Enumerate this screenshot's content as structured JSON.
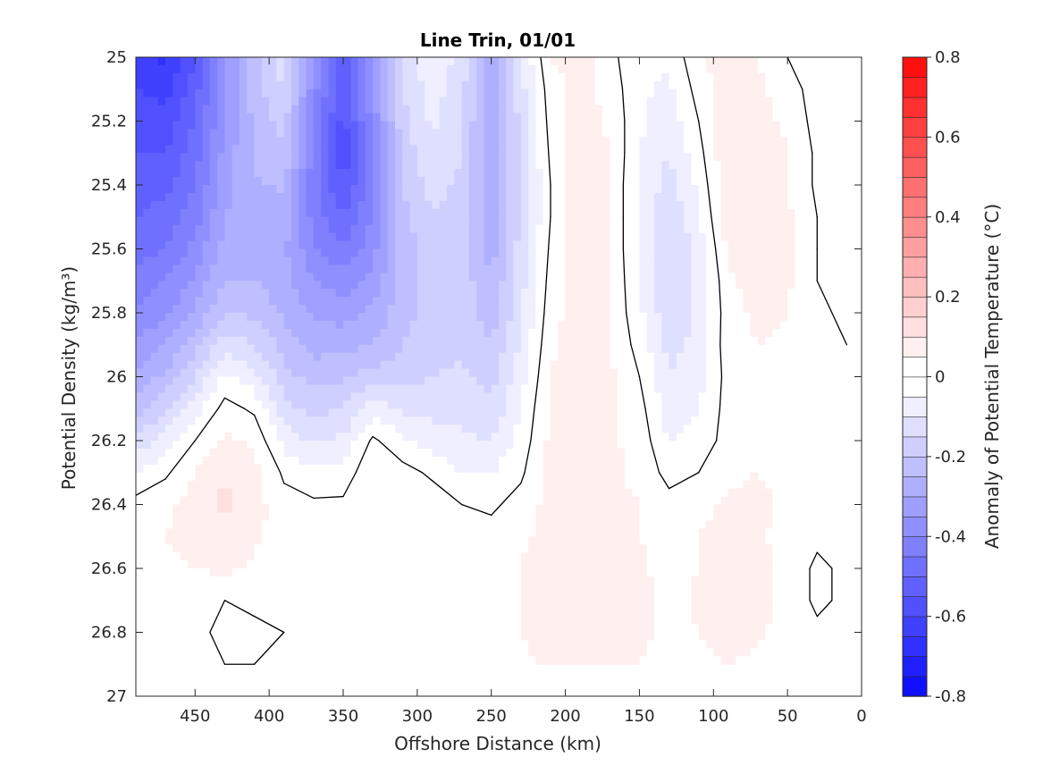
{
  "chart_data": {
    "type": "heatmap",
    "subtype": "filled-contour",
    "title": "Line Trin, 01/01",
    "xlabel": "Offshore Distance (km)",
    "ylabel": "Potential Density (kg/m³)",
    "xlim": [
      490,
      0
    ],
    "ylim": [
      25,
      27
    ],
    "x_direction": "reversed",
    "y_direction": "reversed",
    "x_ticks": [
      450,
      400,
      350,
      300,
      250,
      200,
      150,
      100,
      50,
      0
    ],
    "y_ticks": [
      25,
      25.2,
      25.4,
      25.6,
      25.8,
      26,
      26.2,
      26.4,
      26.6,
      26.8,
      27
    ],
    "y_tick_labels": [
      "25",
      "25.2",
      "25.4",
      "25.6",
      "25.8",
      "26",
      "26.2",
      "26.4",
      "26.6",
      "26.8",
      "27"
    ],
    "grid": false,
    "data_x_range": [
      490,
      10
    ],
    "data_y_range": [
      25,
      26.9
    ],
    "colorbar": {
      "label": "Anomaly of Potential Temperature (°C)",
      "range": [
        -0.8,
        0.8
      ],
      "step": 0.05,
      "ticks": [
        -0.8,
        -0.6,
        -0.4,
        -0.2,
        0,
        0.2,
        0.4,
        0.6,
        0.8
      ],
      "tick_labels": [
        "-0.8",
        "-0.6",
        "-0.4",
        "-0.2",
        "0",
        "0.2",
        "0.4",
        "0.6",
        "0.8"
      ],
      "colormap": "blue-white-red",
      "cold_color": "#0000ff",
      "warm_color": "#ff0000",
      "neutral_color": "#ffffff"
    },
    "zero_contour_color": "#000000",
    "grid_x": [
      490,
      470,
      450,
      430,
      410,
      390,
      370,
      350,
      330,
      310,
      290,
      270,
      250,
      230,
      210,
      190,
      170,
      150,
      130,
      110,
      90,
      70,
      50,
      30,
      10
    ],
    "grid_y": [
      25.0,
      25.1,
      25.2,
      25.3,
      25.4,
      25.5,
      25.6,
      25.7,
      25.8,
      25.9,
      26.0,
      26.1,
      26.2,
      26.3,
      26.4,
      26.5,
      26.6,
      26.7,
      26.8,
      26.9
    ],
    "values": [
      [
        -0.62,
        -0.66,
        -0.55,
        -0.35,
        -0.22,
        -0.12,
        -0.35,
        -0.55,
        -0.35,
        -0.12,
        -0.06,
        -0.12,
        -0.3,
        -0.1,
        0.05,
        0.07,
        0.02,
        -0.05,
        -0.04,
        0.04,
        0.08,
        0.05,
        0.0,
        -0.03,
        -0.04
      ],
      [
        -0.6,
        -0.62,
        -0.52,
        -0.35,
        -0.22,
        -0.15,
        -0.38,
        -0.55,
        -0.35,
        -0.15,
        -0.08,
        -0.13,
        -0.3,
        -0.12,
        0.03,
        0.07,
        0.03,
        -0.04,
        -0.06,
        0.02,
        0.09,
        0.06,
        0.02,
        -0.02,
        -0.05
      ],
      [
        -0.57,
        -0.58,
        -0.5,
        -0.35,
        -0.24,
        -0.18,
        -0.4,
        -0.57,
        -0.38,
        -0.17,
        -0.09,
        -0.14,
        -0.3,
        -0.13,
        0.02,
        0.08,
        0.04,
        -0.04,
        -0.08,
        0.0,
        0.1,
        0.07,
        0.04,
        -0.02,
        -0.05
      ],
      [
        -0.55,
        -0.55,
        -0.47,
        -0.33,
        -0.24,
        -0.21,
        -0.42,
        -0.58,
        -0.4,
        -0.18,
        -0.11,
        -0.15,
        -0.3,
        -0.14,
        0.01,
        0.09,
        0.05,
        -0.05,
        -0.1,
        -0.02,
        0.1,
        0.08,
        0.05,
        -0.01,
        -0.05
      ],
      [
        -0.52,
        -0.52,
        -0.45,
        -0.32,
        -0.26,
        -0.24,
        -0.43,
        -0.56,
        -0.41,
        -0.2,
        -0.13,
        -0.16,
        -0.29,
        -0.14,
        0.0,
        0.09,
        0.05,
        -0.06,
        -0.12,
        -0.04,
        0.09,
        0.08,
        0.05,
        -0.01,
        -0.05
      ],
      [
        -0.5,
        -0.48,
        -0.42,
        -0.3,
        -0.27,
        -0.27,
        -0.42,
        -0.5,
        -0.39,
        -0.22,
        -0.15,
        -0.17,
        -0.28,
        -0.14,
        0.0,
        0.09,
        0.05,
        -0.06,
        -0.14,
        -0.06,
        0.08,
        0.08,
        0.06,
        0.0,
        -0.04
      ],
      [
        -0.47,
        -0.45,
        -0.38,
        -0.28,
        -0.27,
        -0.29,
        -0.39,
        -0.44,
        -0.37,
        -0.23,
        -0.17,
        -0.17,
        -0.27,
        -0.13,
        0.01,
        0.08,
        0.05,
        -0.06,
        -0.15,
        -0.08,
        0.06,
        0.08,
        0.06,
        0.0,
        -0.03
      ],
      [
        -0.43,
        -0.4,
        -0.34,
        -0.25,
        -0.25,
        -0.28,
        -0.35,
        -0.38,
        -0.33,
        -0.23,
        -0.18,
        -0.17,
        -0.25,
        -0.12,
        0.02,
        0.08,
        0.05,
        -0.05,
        -0.15,
        -0.09,
        0.04,
        0.07,
        0.06,
        0.0,
        -0.02
      ],
      [
        -0.39,
        -0.36,
        -0.29,
        -0.2,
        -0.21,
        -0.26,
        -0.31,
        -0.32,
        -0.29,
        -0.22,
        -0.18,
        -0.17,
        -0.23,
        -0.11,
        0.03,
        0.08,
        0.05,
        -0.04,
        -0.14,
        -0.09,
        0.03,
        0.06,
        0.05,
        0.01,
        -0.01
      ],
      [
        -0.34,
        -0.3,
        -0.22,
        -0.12,
        -0.15,
        -0.22,
        -0.27,
        -0.27,
        -0.25,
        -0.2,
        -0.17,
        -0.16,
        -0.2,
        -0.09,
        0.04,
        0.08,
        0.05,
        -0.02,
        -0.12,
        -0.08,
        0.03,
        0.05,
        0.04,
        0.02,
        0.0
      ],
      [
        -0.29,
        -0.24,
        -0.15,
        -0.04,
        -0.08,
        -0.18,
        -0.22,
        -0.21,
        -0.18,
        -0.17,
        -0.15,
        -0.14,
        -0.17,
        -0.07,
        0.05,
        0.09,
        0.06,
        0.0,
        -0.1,
        -0.07,
        0.02,
        0.04,
        0.03,
        0.02,
        0.01
      ],
      [
        -0.22,
        -0.16,
        -0.07,
        0.02,
        -0.01,
        -0.13,
        -0.17,
        -0.15,
        -0.07,
        -0.11,
        -0.12,
        -0.12,
        -0.14,
        -0.05,
        0.06,
        0.09,
        0.06,
        0.02,
        -0.08,
        -0.05,
        0.02,
        0.03,
        0.03,
        0.02,
        0.02
      ],
      [
        -0.14,
        -0.08,
        0.0,
        0.06,
        0.04,
        -0.07,
        -0.11,
        -0.09,
        0.01,
        -0.04,
        -0.07,
        -0.09,
        -0.1,
        -0.03,
        0.06,
        0.09,
        0.06,
        0.03,
        -0.05,
        -0.03,
        0.02,
        0.03,
        0.03,
        0.02,
        0.02
      ],
      [
        -0.05,
        -0.01,
        0.05,
        0.1,
        0.07,
        -0.01,
        -0.04,
        -0.03,
        0.04,
        0.02,
        -0.01,
        -0.05,
        -0.05,
        -0.01,
        0.07,
        0.08,
        0.06,
        0.04,
        -0.02,
        0.0,
        0.04,
        0.05,
        0.04,
        0.02,
        0.02
      ],
      [
        0.02,
        0.04,
        0.07,
        0.11,
        0.07,
        0.02,
        0.01,
        0.01,
        0.05,
        0.05,
        0.03,
        0.0,
        -0.01,
        0.02,
        0.07,
        0.08,
        0.06,
        0.05,
        0.02,
        0.03,
        0.06,
        0.06,
        0.04,
        0.02,
        0.02
      ],
      [
        0.04,
        0.05,
        0.07,
        0.09,
        0.06,
        0.03,
        0.03,
        0.02,
        0.04,
        0.05,
        0.04,
        0.02,
        0.02,
        0.04,
        0.07,
        0.08,
        0.07,
        0.05,
        0.03,
        0.05,
        0.07,
        0.06,
        0.03,
        0.01,
        0.02
      ],
      [
        0.04,
        0.04,
        0.05,
        0.06,
        0.04,
        0.02,
        0.02,
        0.01,
        0.03,
        0.05,
        0.04,
        0.02,
        0.02,
        0.05,
        0.08,
        0.09,
        0.08,
        0.06,
        0.03,
        0.05,
        0.08,
        0.07,
        0.03,
        -0.01,
        0.01
      ],
      [
        0.03,
        0.03,
        0.02,
        0.0,
        0.01,
        0.01,
        0.01,
        0.0,
        0.02,
        0.04,
        0.04,
        0.02,
        0.02,
        0.05,
        0.08,
        0.1,
        0.1,
        0.07,
        0.03,
        0.06,
        0.09,
        0.07,
        0.03,
        -0.01,
        0.01
      ],
      [
        0.02,
        0.02,
        0.01,
        -0.01,
        -0.01,
        0.0,
        0.01,
        0.01,
        0.03,
        0.05,
        0.04,
        0.02,
        0.02,
        0.05,
        0.08,
        0.09,
        0.09,
        0.07,
        0.03,
        0.05,
        0.07,
        0.06,
        0.03,
        0.01,
        0.02
      ],
      [
        0.01,
        0.01,
        0.01,
        0.0,
        0.0,
        0.01,
        0.01,
        0.01,
        0.03,
        0.04,
        0.03,
        0.02,
        0.02,
        0.04,
        0.06,
        0.07,
        0.07,
        0.05,
        0.02,
        0.04,
        0.05,
        0.04,
        0.02,
        0.01,
        0.01
      ]
    ]
  }
}
